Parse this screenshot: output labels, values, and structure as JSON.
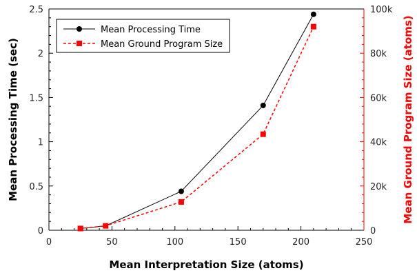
{
  "chart_data": {
    "type": "line",
    "xlabel": "Mean Interpretation Size (atoms)",
    "ylabel": "Mean Processing Time (sec)",
    "y2label": "Mean Ground Program Size (atoms)",
    "xlim": [
      0,
      250
    ],
    "ylim": [
      0,
      2.5
    ],
    "y2lim": [
      0,
      100000
    ],
    "x_ticks": [
      0,
      50,
      100,
      150,
      200,
      250
    ],
    "x_tick_labels": [
      "0",
      "50",
      "100",
      "150",
      "200",
      "250"
    ],
    "y_ticks": [
      0,
      0.5,
      1,
      1.5,
      2,
      2.5
    ],
    "y_tick_labels": [
      "0",
      "0.5",
      "1",
      "1.5",
      "2",
      "2.5"
    ],
    "y2_ticks": [
      0,
      20000,
      40000,
      60000,
      80000,
      100000
    ],
    "y2_tick_labels": [
      "0",
      "20k",
      "40k",
      "60k",
      "80k",
      "100k"
    ],
    "legend_position": "top-left",
    "series": [
      {
        "name": "Mean Processing Time",
        "axis": "left",
        "color": "#000000",
        "marker": "circle",
        "line_style": "solid",
        "x": [
          25,
          45,
          105,
          170,
          210
        ],
        "values": [
          0.02,
          0.05,
          0.44,
          1.41,
          2.44
        ]
      },
      {
        "name": "Mean Ground Program Size",
        "axis": "right",
        "color": "#ff0000",
        "marker": "square",
        "line_style": "dashed",
        "x": [
          25,
          45,
          105,
          170,
          210
        ],
        "values": [
          800,
          2000,
          12800,
          43400,
          92000
        ]
      }
    ]
  }
}
